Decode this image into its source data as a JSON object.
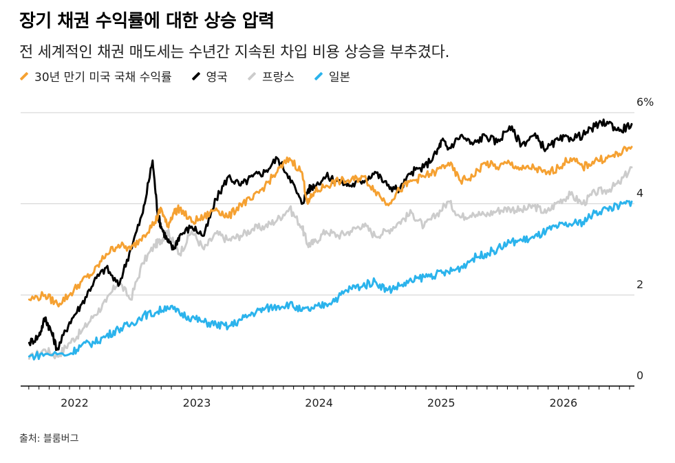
{
  "header": {
    "title": "장기 채권 수익률에 대한 상승 압력",
    "subtitle": "전 세계적인 채권 매도세는 수년간 지속된 차입 비용 상승을 부추겼다."
  },
  "legend": [
    {
      "label": "30년 만기 미국 국채 수익률",
      "color": "#f5a132"
    },
    {
      "label": "영국",
      "color": "#000000"
    },
    {
      "label": "프랑스",
      "color": "#cccccc"
    },
    {
      "label": "일본",
      "color": "#2bb3ec"
    }
  ],
  "source": "출처: 블룸버그",
  "chart_data": {
    "type": "line",
    "title": "장기 채권 수익률에 대한 상승 압력",
    "ylim": [
      0,
      6
    ],
    "y_ticks": [
      {
        "value": 0,
        "label": "0"
      },
      {
        "value": 2,
        "label": "2"
      },
      {
        "value": 4,
        "label": "4"
      },
      {
        "value": 6,
        "label": "6%"
      }
    ],
    "xlim": [
      2021.6,
      2026.6
    ],
    "x_ticks": [
      {
        "value": 2022,
        "label": "2022"
      },
      {
        "value": 2023,
        "label": "2023"
      },
      {
        "value": 2024,
        "label": "2024"
      },
      {
        "value": 2025,
        "label": "2025"
      },
      {
        "value": 2026,
        "label": "2026"
      }
    ],
    "grid": true,
    "series": [
      {
        "name": "프랑스",
        "color": "#cccccc",
        "x": [
          2021.67,
          2021.8,
          2021.9,
          2022.0,
          2022.1,
          2022.2,
          2022.3,
          2022.4,
          2022.5,
          2022.6,
          2022.7,
          2022.75,
          2022.8,
          2022.85,
          2022.9,
          2023.0,
          2023.1,
          2023.2,
          2023.3,
          2023.4,
          2023.5,
          2023.6,
          2023.7,
          2023.8,
          2023.9,
          2023.95,
          2024.0,
          2024.1,
          2024.2,
          2024.3,
          2024.4,
          2024.5,
          2024.6,
          2024.7,
          2024.8,
          2024.9,
          2025.0,
          2025.1,
          2025.2,
          2025.3,
          2025.4,
          2025.5,
          2025.6,
          2025.7,
          2025.8,
          2025.9,
          2026.0,
          2026.1,
          2026.2,
          2026.3,
          2026.4,
          2026.5,
          2026.6
        ],
        "values": [
          0.6,
          0.8,
          0.65,
          0.95,
          1.2,
          1.55,
          1.85,
          2.3,
          1.9,
          2.7,
          3.1,
          3.2,
          3.4,
          3.15,
          2.9,
          3.4,
          3.0,
          3.35,
          3.2,
          3.3,
          3.45,
          3.5,
          3.65,
          3.9,
          3.5,
          3.1,
          3.15,
          3.4,
          3.3,
          3.4,
          3.55,
          3.3,
          3.4,
          3.6,
          3.8,
          3.5,
          3.75,
          4.05,
          3.7,
          3.8,
          3.75,
          3.85,
          3.9,
          3.85,
          3.95,
          3.8,
          4.05,
          4.2,
          4.0,
          4.25,
          4.3,
          4.45,
          4.8
        ]
      },
      {
        "name": "영국",
        "color": "#000000",
        "x": [
          2021.67,
          2021.75,
          2021.8,
          2021.85,
          2021.9,
          2022.0,
          2022.1,
          2022.2,
          2022.3,
          2022.4,
          2022.5,
          2022.6,
          2022.68,
          2022.72,
          2022.75,
          2022.8,
          2022.85,
          2022.9,
          2023.0,
          2023.1,
          2023.2,
          2023.3,
          2023.4,
          2023.5,
          2023.6,
          2023.7,
          2023.8,
          2023.9,
          2023.95,
          2024.0,
          2024.1,
          2024.2,
          2024.3,
          2024.4,
          2024.5,
          2024.6,
          2024.7,
          2024.8,
          2024.9,
          2025.0,
          2025.05,
          2025.1,
          2025.2,
          2025.3,
          2025.4,
          2025.5,
          2025.6,
          2025.7,
          2025.8,
          2025.9,
          2026.0,
          2026.1,
          2026.2,
          2026.3,
          2026.4,
          2026.5,
          2026.6
        ],
        "values": [
          0.95,
          1.1,
          1.5,
          1.2,
          0.8,
          1.4,
          1.8,
          2.3,
          2.6,
          2.2,
          3.0,
          3.8,
          4.95,
          3.8,
          3.5,
          3.2,
          3.0,
          3.3,
          3.5,
          3.3,
          4.1,
          4.6,
          4.4,
          4.6,
          4.7,
          5.0,
          4.6,
          4.0,
          4.3,
          4.4,
          4.6,
          4.5,
          4.4,
          4.5,
          4.7,
          4.4,
          4.3,
          4.7,
          4.8,
          5.1,
          5.4,
          5.2,
          5.5,
          5.3,
          5.5,
          5.35,
          5.7,
          5.3,
          5.5,
          5.2,
          5.4,
          5.45,
          5.5,
          5.7,
          5.8,
          5.6,
          5.75
        ]
      },
      {
        "name": "30년 만기 미국 국채 수익률",
        "color": "#f5a132",
        "x": [
          2021.67,
          2021.8,
          2021.9,
          2022.0,
          2022.1,
          2022.2,
          2022.3,
          2022.4,
          2022.5,
          2022.6,
          2022.7,
          2022.75,
          2022.8,
          2022.85,
          2022.9,
          2023.0,
          2023.1,
          2023.2,
          2023.3,
          2023.4,
          2023.5,
          2023.6,
          2023.7,
          2023.8,
          2023.9,
          2023.95,
          2024.0,
          2024.1,
          2024.2,
          2024.3,
          2024.4,
          2024.5,
          2024.6,
          2024.7,
          2024.8,
          2024.9,
          2025.0,
          2025.1,
          2025.2,
          2025.3,
          2025.4,
          2025.5,
          2025.6,
          2025.7,
          2025.8,
          2025.9,
          2026.0,
          2026.1,
          2026.2,
          2026.3,
          2026.4,
          2026.5,
          2026.6
        ],
        "values": [
          1.9,
          2.0,
          1.8,
          2.0,
          2.3,
          2.5,
          2.9,
          3.1,
          3.0,
          3.3,
          3.6,
          3.9,
          3.5,
          3.8,
          3.9,
          3.6,
          3.7,
          3.9,
          3.7,
          4.0,
          4.1,
          4.4,
          4.7,
          5.0,
          4.7,
          4.0,
          4.25,
          4.4,
          4.5,
          4.5,
          4.6,
          4.3,
          4.0,
          4.3,
          4.5,
          4.6,
          4.7,
          4.9,
          4.5,
          4.6,
          4.9,
          4.8,
          4.9,
          4.75,
          4.8,
          4.65,
          4.8,
          5.0,
          4.8,
          4.95,
          5.0,
          5.1,
          5.25
        ]
      },
      {
        "name": "일본",
        "color": "#2bb3ec",
        "x": [
          2021.67,
          2021.8,
          2022.0,
          2022.1,
          2022.2,
          2022.3,
          2022.4,
          2022.5,
          2022.6,
          2022.7,
          2022.8,
          2022.9,
          2023.0,
          2023.1,
          2023.2,
          2023.3,
          2023.4,
          2023.5,
          2023.6,
          2023.7,
          2023.8,
          2023.9,
          2024.0,
          2024.1,
          2024.2,
          2024.3,
          2024.4,
          2024.5,
          2024.6,
          2024.7,
          2024.8,
          2024.9,
          2025.0,
          2025.1,
          2025.2,
          2025.3,
          2025.4,
          2025.5,
          2025.6,
          2025.7,
          2025.8,
          2025.9,
          2026.0,
          2026.1,
          2026.2,
          2026.3,
          2026.4,
          2026.5,
          2026.6
        ],
        "values": [
          0.65,
          0.7,
          0.7,
          0.9,
          0.95,
          1.1,
          1.25,
          1.35,
          1.55,
          1.6,
          1.75,
          1.6,
          1.5,
          1.4,
          1.35,
          1.3,
          1.45,
          1.6,
          1.7,
          1.75,
          1.8,
          1.65,
          1.7,
          1.8,
          1.95,
          2.15,
          2.2,
          2.3,
          2.1,
          2.2,
          2.3,
          2.4,
          2.45,
          2.5,
          2.6,
          2.8,
          2.9,
          3.0,
          3.15,
          3.2,
          3.25,
          3.4,
          3.5,
          3.55,
          3.6,
          3.8,
          3.9,
          3.95,
          4.05
        ]
      }
    ]
  }
}
